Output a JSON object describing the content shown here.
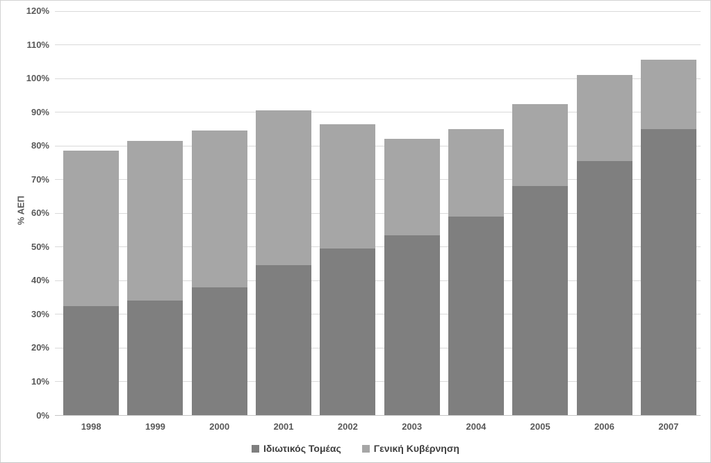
{
  "chart_data": {
    "type": "bar",
    "stacked": true,
    "title": "",
    "xlabel": "",
    "ylabel": "% ΑΕΠ",
    "categories": [
      "1998",
      "1999",
      "2000",
      "2001",
      "2002",
      "2003",
      "2004",
      "2005",
      "2006",
      "2007"
    ],
    "series": [
      {
        "name": "Ιδιωτικός Τομέας",
        "color": "#7f7f7f",
        "values": [
          32.5,
          34,
          38,
          44.5,
          49.5,
          53.5,
          59,
          68,
          75.5,
          85
        ]
      },
      {
        "name": "Γενική Κυβέρνηση",
        "color": "#a6a6a6",
        "values": [
          46,
          47.5,
          46.5,
          46,
          37,
          28.5,
          26,
          24.5,
          25.5,
          20.5
        ]
      }
    ],
    "ylim": [
      0,
      120
    ],
    "ytick_step": 10,
    "ytick_labels": [
      "0%",
      "10%",
      "20%",
      "30%",
      "40%",
      "50%",
      "60%",
      "70%",
      "80%",
      "90%",
      "100%",
      "110%",
      "120%"
    ],
    "grid": true,
    "legend_position": "bottom"
  },
  "styles": {
    "grid_color": "#d9d9d9",
    "axis_line_color": "#c6c6c6",
    "tick_label_color": "#595959",
    "legend_text_color": "#3f3f3f",
    "frame_border_color": "#d2d2d2",
    "background": "#ffffff"
  }
}
